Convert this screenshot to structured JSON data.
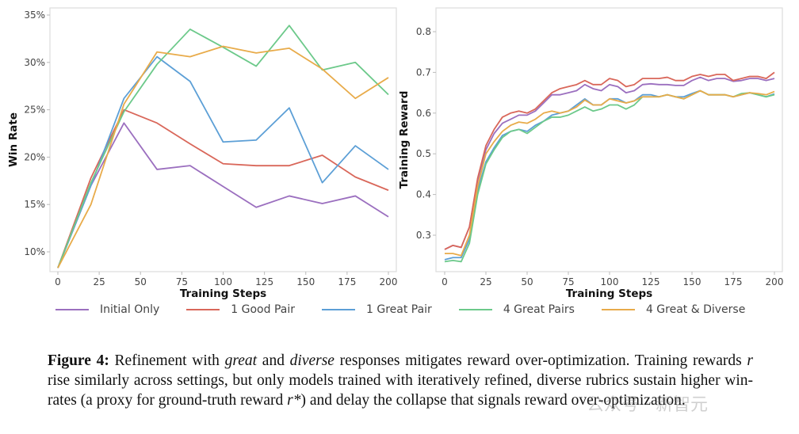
{
  "chart_data": [
    {
      "type": "line",
      "xlabel": "Training Steps",
      "ylabel": "Win Rate",
      "xlim": [
        0,
        200
      ],
      "ylim": [
        8,
        35
      ],
      "xticks": [
        "0",
        "25",
        "50",
        "75",
        "100",
        "125",
        "150",
        "175",
        "200"
      ],
      "yticks": [
        "10%",
        "15%",
        "20%",
        "25%",
        "30%",
        "35%"
      ],
      "grid": false,
      "x": [
        0,
        20,
        40,
        60,
        80,
        100,
        120,
        140,
        160,
        180,
        200
      ],
      "series": [
        {
          "name": "Initial Only",
          "color": "#9b6fbf",
          "values": [
            8.3,
            17.0,
            23.6,
            18.7,
            19.1,
            16.9,
            14.7,
            15.9,
            15.1,
            15.9,
            13.7
          ]
        },
        {
          "name": "1 Good Pair",
          "color": "#d9675a",
          "values": [
            8.3,
            17.8,
            25.0,
            23.6,
            21.4,
            19.3,
            19.1,
            19.1,
            20.2,
            17.9,
            16.5
          ]
        },
        {
          "name": "1 Great Pair",
          "color": "#5c9fd6",
          "values": [
            8.3,
            17.0,
            26.2,
            30.6,
            28.0,
            21.6,
            21.8,
            25.2,
            17.3,
            21.2,
            18.7
          ]
        },
        {
          "name": "4 Great Pairs",
          "color": "#6cc98a",
          "values": [
            8.3,
            17.3,
            24.8,
            29.8,
            33.5,
            31.6,
            29.6,
            33.9,
            29.2,
            30.0,
            26.6
          ]
        },
        {
          "name": "4 Great & Diverse",
          "color": "#e8ab4a",
          "values": [
            8.3,
            15.0,
            25.6,
            31.1,
            30.6,
            31.7,
            31.0,
            31.5,
            29.3,
            26.2,
            28.4
          ]
        }
      ]
    },
    {
      "type": "line",
      "xlabel": "Training Steps",
      "ylabel": "Training Reward",
      "xlim": [
        0,
        200
      ],
      "ylim": [
        0.215,
        0.865
      ],
      "xticks": [
        "0",
        "25",
        "50",
        "75",
        "100",
        "125",
        "150",
        "175",
        "200"
      ],
      "yticks": [
        "0.3",
        "0.4",
        "0.5",
        "0.6",
        "0.7",
        "0.8"
      ],
      "grid": false,
      "x": [
        0,
        5,
        10,
        15,
        20,
        25,
        30,
        35,
        40,
        45,
        50,
        55,
        60,
        65,
        70,
        75,
        80,
        85,
        90,
        95,
        100,
        105,
        110,
        115,
        120,
        125,
        130,
        135,
        140,
        145,
        150,
        155,
        160,
        165,
        170,
        175,
        180,
        185,
        190,
        195,
        200
      ],
      "series": [
        {
          "name": "Initial Only",
          "color": "#9b6fbf",
          "values": [
            0.265,
            0.275,
            0.27,
            0.32,
            0.435,
            0.51,
            0.55,
            0.575,
            0.585,
            0.595,
            0.595,
            0.605,
            0.625,
            0.645,
            0.645,
            0.65,
            0.655,
            0.67,
            0.66,
            0.655,
            0.67,
            0.665,
            0.65,
            0.655,
            0.67,
            0.672,
            0.67,
            0.67,
            0.668,
            0.668,
            0.68,
            0.688,
            0.68,
            0.685,
            0.685,
            0.678,
            0.68,
            0.685,
            0.685,
            0.68,
            0.685
          ]
        },
        {
          "name": "1 Good Pair",
          "color": "#d9675a",
          "values": [
            0.265,
            0.275,
            0.27,
            0.32,
            0.44,
            0.52,
            0.56,
            0.59,
            0.6,
            0.605,
            0.6,
            0.61,
            0.63,
            0.65,
            0.66,
            0.665,
            0.67,
            0.68,
            0.67,
            0.67,
            0.685,
            0.68,
            0.665,
            0.67,
            0.685,
            0.685,
            0.685,
            0.688,
            0.68,
            0.68,
            0.69,
            0.695,
            0.69,
            0.695,
            0.695,
            0.68,
            0.685,
            0.69,
            0.69,
            0.685,
            0.7
          ]
        },
        {
          "name": "1 Great Pair",
          "color": "#5c9fd6",
          "values": [
            0.24,
            0.245,
            0.245,
            0.29,
            0.41,
            0.48,
            0.515,
            0.545,
            0.555,
            0.56,
            0.555,
            0.57,
            0.58,
            0.595,
            0.6,
            0.605,
            0.62,
            0.635,
            0.62,
            0.62,
            0.635,
            0.635,
            0.625,
            0.63,
            0.645,
            0.645,
            0.64,
            0.645,
            0.64,
            0.64,
            0.648,
            0.655,
            0.645,
            0.645,
            0.645,
            0.64,
            0.645,
            0.65,
            0.645,
            0.64,
            0.647
          ]
        },
        {
          "name": "4 Great Pairs",
          "color": "#6cc98a",
          "values": [
            0.235,
            0.238,
            0.235,
            0.28,
            0.4,
            0.475,
            0.51,
            0.54,
            0.555,
            0.56,
            0.55,
            0.565,
            0.58,
            0.59,
            0.59,
            0.595,
            0.605,
            0.615,
            0.605,
            0.61,
            0.62,
            0.62,
            0.61,
            0.62,
            0.64,
            0.64,
            0.64,
            0.645,
            0.64,
            0.635,
            0.645,
            0.655,
            0.645,
            0.645,
            0.645,
            0.64,
            0.648,
            0.65,
            0.645,
            0.64,
            0.645
          ]
        },
        {
          "name": "4 Great & Diverse",
          "color": "#e8ab4a",
          "values": [
            0.255,
            0.255,
            0.25,
            0.3,
            0.42,
            0.5,
            0.53,
            0.555,
            0.57,
            0.578,
            0.575,
            0.585,
            0.6,
            0.605,
            0.6,
            0.605,
            0.615,
            0.632,
            0.62,
            0.62,
            0.635,
            0.63,
            0.625,
            0.63,
            0.64,
            0.64,
            0.64,
            0.645,
            0.64,
            0.635,
            0.645,
            0.655,
            0.645,
            0.645,
            0.645,
            0.64,
            0.645,
            0.65,
            0.648,
            0.645,
            0.653
          ]
        }
      ]
    }
  ],
  "legend": [
    "Initial Only",
    "1 Good Pair",
    "1 Great Pair",
    "4 Great Pairs",
    "4 Great & Diverse"
  ],
  "caption": {
    "label": "Figure 4:",
    "parts": [
      {
        "t": " Refinement with ",
        "i": false
      },
      {
        "t": "great",
        "i": true
      },
      {
        "t": " and ",
        "i": false
      },
      {
        "t": "diverse",
        "i": true
      },
      {
        "t": " responses mitigates reward over-optimization. Training rewards ",
        "i": false
      },
      {
        "t": "r",
        "i": true
      },
      {
        "t": " rise similarly across settings, but only models trained with iteratively refined, diverse rubrics sustain higher win-rates (a proxy for ground-truth reward ",
        "i": false
      },
      {
        "t": "r*",
        "i": true
      },
      {
        "t": ") and delay the collapse that signals reward over-optimization.",
        "i": false
      }
    ]
  },
  "watermark": "公众号 · 新智元"
}
